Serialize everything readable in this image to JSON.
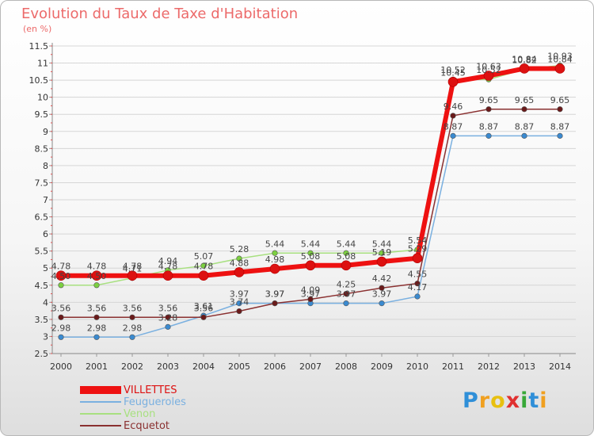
{
  "title": "Evolution du Taux de Taxe d'Habitation",
  "unit": "(en %)",
  "brand": {
    "letters": [
      {
        "ch": "P",
        "color": "#2f8fd8"
      },
      {
        "ch": "r",
        "color": "#f0a020"
      },
      {
        "ch": "o",
        "color": "#e8c010"
      },
      {
        "ch": "x",
        "color": "#e03030"
      },
      {
        "ch": "i",
        "color": "#38a838"
      },
      {
        "ch": "t",
        "color": "#2f8fd8"
      },
      {
        "ch": "i",
        "color": "#f0a020"
      }
    ]
  },
  "chart_data": {
    "type": "line",
    "categories": [
      "2000",
      "2001",
      "2002",
      "2003",
      "2004",
      "2005",
      "2006",
      "2007",
      "2008",
      "2009",
      "2010",
      "2011",
      "2012",
      "2013",
      "2014"
    ],
    "ylim": [
      2.5,
      11.5
    ],
    "yticks": [
      "2.5",
      "3",
      "3.5",
      "4",
      "4.5",
      "5",
      "5.5",
      "6",
      "6.5",
      "7",
      "7.5",
      "8",
      "8.5",
      "9",
      "9.5",
      "10",
      "10.5",
      "11",
      "11.5"
    ],
    "grid": "horizontal",
    "legend_position": "bottom-left",
    "series": [
      {
        "name": "VILLETTES",
        "color": "#ee1111",
        "point_color": "#dd1111",
        "width": 6,
        "values": [
          4.78,
          4.78,
          4.78,
          4.78,
          4.78,
          4.88,
          4.98,
          5.08,
          5.08,
          5.19,
          5.29,
          10.45,
          10.63,
          10.84,
          10.84
        ],
        "labels": [
          "4.78",
          "4.78",
          "4.78",
          "4.78",
          "4.78",
          "4.88",
          "4.98",
          "5.08",
          "5.08",
          "5.19",
          "5.29",
          "10.45",
          "10.63",
          "10.84",
          "10.84"
        ]
      },
      {
        "name": "Feugueroles",
        "color": "#7ab0e0",
        "point_color": "#3a8ad0",
        "width": 1.5,
        "values": [
          2.98,
          2.98,
          2.98,
          3.28,
          3.61,
          3.97,
          3.97,
          3.97,
          3.97,
          3.97,
          4.17,
          8.87,
          8.87,
          8.87,
          8.87
        ],
        "labels": [
          "2.98",
          "2.98",
          "2.98",
          "3.28",
          "3.61",
          "3.97",
          "3.97",
          "3.97",
          "3.97",
          "3.97",
          "4.17",
          "8.87",
          "8.87",
          "8.87",
          "8.87"
        ]
      },
      {
        "name": "Venon",
        "color": "#a8e080",
        "point_color": "#7cd040",
        "width": 1.5,
        "values": [
          4.5,
          4.5,
          4.71,
          4.94,
          5.07,
          5.28,
          5.44,
          5.44,
          5.44,
          5.44,
          5.54,
          10.52,
          10.52,
          10.82,
          10.93
        ],
        "labels": [
          "4.50",
          "4.50",
          "4.71",
          "4.94",
          "5.07",
          "5.28",
          "5.44",
          "5.44",
          "5.44",
          "5.44",
          "5.54",
          "10.52",
          "10.52",
          "10.82",
          "10.93"
        ]
      },
      {
        "name": "Ecquetot",
        "color": "#8a3030",
        "point_color": "#6a1a1a",
        "width": 1.5,
        "values": [
          3.56,
          3.56,
          3.56,
          3.56,
          3.56,
          3.74,
          3.97,
          4.09,
          4.25,
          4.42,
          4.55,
          9.46,
          9.65,
          9.65,
          9.65
        ],
        "labels": [
          "3.56",
          "3.56",
          "3.56",
          "3.56",
          "3.56",
          "3.74",
          "3.97",
          "4.09",
          "4.25",
          "4.42",
          "4.55",
          "9.46",
          "9.65",
          "9.65",
          "9.65"
        ]
      }
    ]
  }
}
